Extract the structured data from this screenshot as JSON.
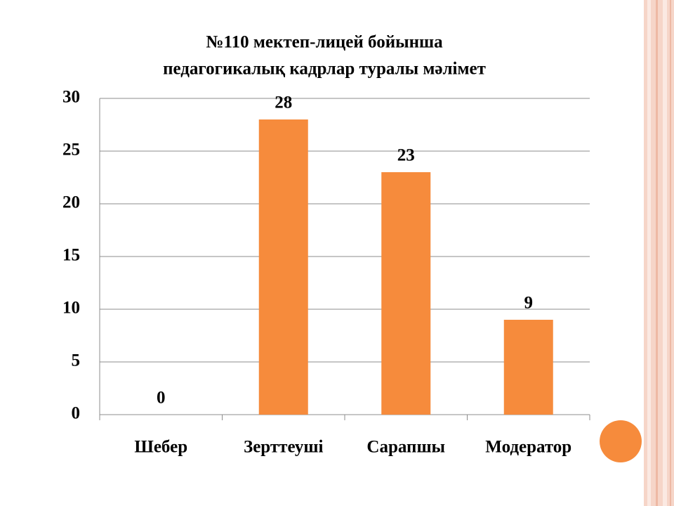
{
  "chart_data": {
    "type": "bar",
    "title": [
      "№110 мектеп-лицей бойынша",
      "педагогикалық кадрлар туралы мәлімет"
    ],
    "categories": [
      "Шебер",
      "Зерттеуші",
      "Сарапшы",
      "Модератор"
    ],
    "values": [
      0,
      28,
      23,
      9
    ],
    "color": "#f68b3c",
    "ylim": [
      0,
      30
    ],
    "yticks": [
      0,
      5,
      10,
      15,
      20,
      25,
      30
    ],
    "grid": true
  }
}
